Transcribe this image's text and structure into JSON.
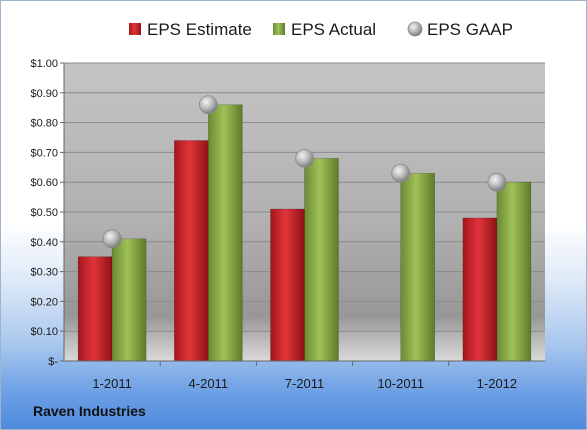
{
  "chart_data": {
    "type": "bar",
    "categories": [
      "1-2011",
      "4-2011",
      "7-2011",
      "10-2011",
      "1-2012"
    ],
    "series": [
      {
        "name": "EPS Estimate",
        "kind": "bar",
        "color": "#c0232a",
        "values": [
          0.35,
          0.74,
          0.51,
          null,
          0.48
        ]
      },
      {
        "name": "EPS Actual",
        "kind": "bar",
        "color": "#86a846",
        "values": [
          0.41,
          0.86,
          0.68,
          0.63,
          0.6
        ]
      },
      {
        "name": "EPS GAAP",
        "kind": "marker",
        "color": "#a9a9a9",
        "values": [
          0.41,
          0.86,
          0.68,
          0.63,
          0.6
        ]
      }
    ],
    "y_ticks": [
      0,
      0.1,
      0.2,
      0.3,
      0.4,
      0.5,
      0.6,
      0.7,
      0.8,
      0.9,
      1.0
    ],
    "y_tick_labels": [
      "$-",
      "$0.10",
      "$0.20",
      "$0.30",
      "$0.40",
      "$0.50",
      "$0.60",
      "$0.70",
      "$0.80",
      "$0.90",
      "$1.00"
    ],
    "ylim": [
      0,
      1.0
    ],
    "grid": true,
    "legend_position": "top"
  },
  "footer": {
    "company": "Raven Industries"
  }
}
